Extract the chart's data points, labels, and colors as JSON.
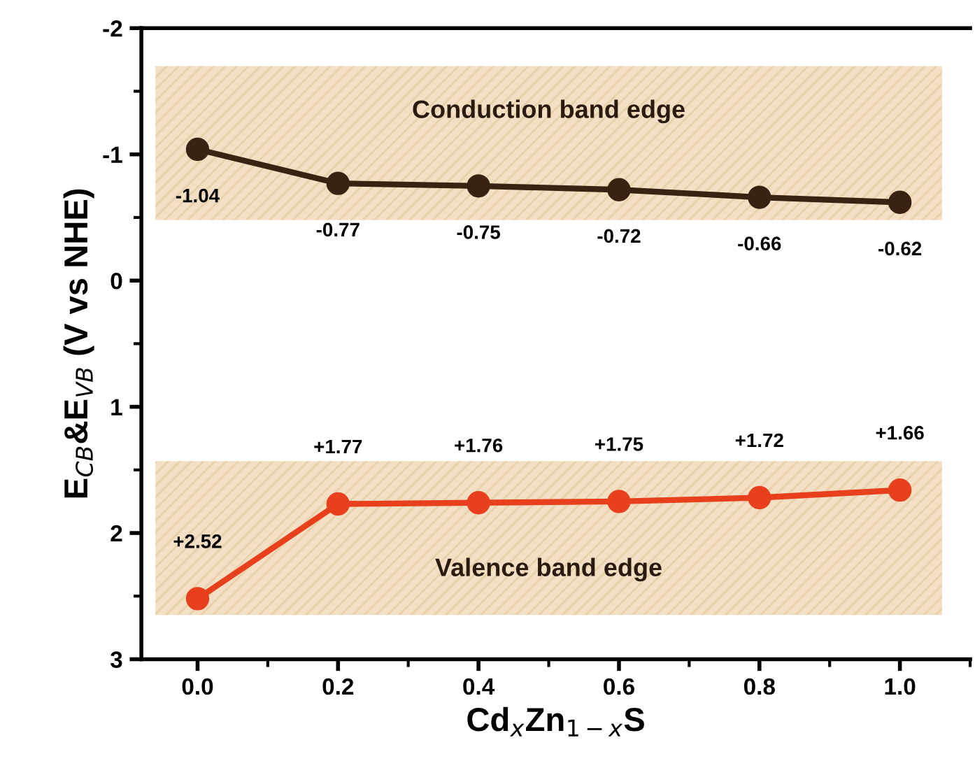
{
  "chart_data": {
    "type": "line",
    "xlabel": "Cd$_{x}$Zn$_{1−x}$S",
    "ylabel": "E$_{CB}$&E$_{VB}$ (V vs NHE)",
    "x": [
      0.0,
      0.2,
      0.4,
      0.6,
      0.8,
      1.0
    ],
    "series": [
      {
        "color": "#3a2212",
        "values": [
          -1.04,
          -0.77,
          -0.75,
          -0.72,
          -0.66,
          -0.62
        ],
        "value_labels": [
          "-1.04",
          "-0.77",
          "-0.75",
          "-0.72",
          "-0.66",
          "-0.62"
        ]
      },
      {
        "color": "#e8401c",
        "values": [
          2.52,
          1.77,
          1.76,
          1.75,
          1.72,
          1.66
        ],
        "value_labels": [
          "+2.52",
          "+1.77",
          "+1.76",
          "+1.75",
          "+1.72",
          "+1.66"
        ]
      }
    ],
    "bands": [
      {
        "axis": "y",
        "from": -1.7,
        "to": -0.48,
        "label": "Conduction band edge",
        "color": "#f2dfc4"
      },
      {
        "axis": "y",
        "from": 1.43,
        "to": 2.65,
        "label": "Valence band edge",
        "color": "#f2dfc4"
      }
    ],
    "xlim": [
      -0.08,
      1.1
    ],
    "ylim": [
      3,
      -2
    ],
    "xticks": [
      {
        "value": 0,
        "label": "0.0"
      },
      0.2,
      0.4,
      0.6,
      0.8,
      {
        "value": 1,
        "label": "1.0"
      }
    ],
    "yticks": [
      -2,
      -1,
      0,
      1,
      2,
      3
    ],
    "marker": "circle",
    "line_style": "solid",
    "grid": false,
    "legend": false
  }
}
